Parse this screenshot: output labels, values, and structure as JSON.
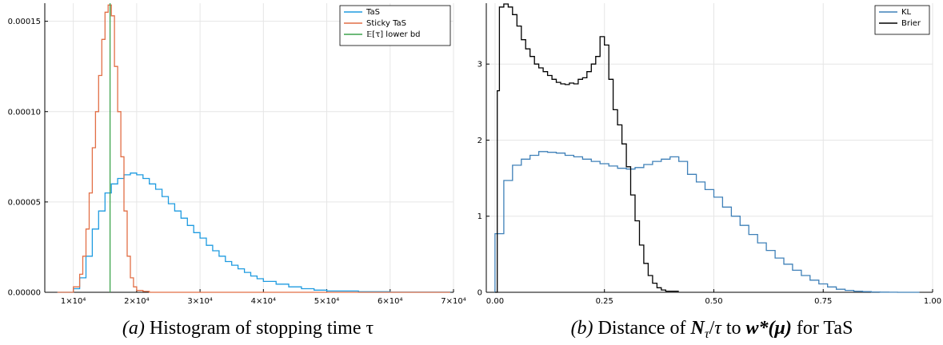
{
  "chart_data": [
    {
      "type": "line",
      "step": true,
      "caption": {
        "label": "(a)",
        "text": "Histogram of stopping time τ"
      },
      "xlim": [
        5500,
        70000
      ],
      "ylim": [
        0,
        0.00016
      ],
      "xticks": [
        {
          "v": 10000,
          "label": "1×10⁴"
        },
        {
          "v": 20000,
          "label": "2×10⁴"
        },
        {
          "v": 30000,
          "label": "3×10⁴"
        },
        {
          "v": 40000,
          "label": "4×10⁴"
        },
        {
          "v": 50000,
          "label": "5×10⁴"
        },
        {
          "v": 60000,
          "label": "6×10⁴"
        },
        {
          "v": 70000,
          "label": "7×10⁴"
        }
      ],
      "yticks": [
        {
          "v": 0,
          "label": "0.00000"
        },
        {
          "v": 5e-05,
          "label": "0.00005"
        },
        {
          "v": 0.0001,
          "label": "0.00010"
        },
        {
          "v": 0.00015,
          "label": "0.00015"
        }
      ],
      "grid": true,
      "legend": "top-right",
      "vline": {
        "name": "𝔼[τ] lower bd",
        "x": 15800,
        "color": "#3da44d"
      },
      "series": [
        {
          "name": "TaS",
          "color": "#1e9be0",
          "x": [
            7500,
            10000,
            11000,
            12000,
            13000,
            14000,
            15000,
            16000,
            17000,
            18000,
            19000,
            20000,
            21000,
            22000,
            23000,
            24000,
            25000,
            26000,
            27000,
            28000,
            29000,
            30000,
            31000,
            32000,
            33000,
            34000,
            35000,
            36000,
            37000,
            38000,
            39000,
            40000,
            42000,
            44000,
            46000,
            48000,
            50000,
            55000,
            60000,
            69500
          ],
          "y": [
            0,
            2e-06,
            8e-06,
            2e-05,
            3.5e-05,
            4.5e-05,
            5.5e-05,
            6e-05,
            6.3e-05,
            6.5e-05,
            6.6e-05,
            6.5e-05,
            6.3e-05,
            6e-05,
            5.7e-05,
            5.3e-05,
            4.9e-05,
            4.5e-05,
            4.1e-05,
            3.7e-05,
            3.3e-05,
            3e-05,
            2.6e-05,
            2.3e-05,
            2e-05,
            1.7e-05,
            1.5e-05,
            1.3e-05,
            1.1e-05,
            9e-06,
            7.5e-06,
            6e-06,
            4.5e-06,
            3e-06,
            2e-06,
            1.2e-06,
            7e-07,
            3e-07,
            1e-07,
            0
          ]
        },
        {
          "name": "Sticky TaS",
          "color": "#e26f46",
          "x": [
            7500,
            10000,
            11000,
            11500,
            12000,
            12500,
            13000,
            13500,
            14000,
            14500,
            15000,
            15500,
            16000,
            16500,
            17000,
            17500,
            18000,
            18500,
            19000,
            19500,
            20000,
            21000,
            22000,
            69500
          ],
          "y": [
            0,
            3e-06,
            1e-05,
            2e-05,
            3.5e-05,
            5.5e-05,
            8e-05,
            0.0001,
            0.00012,
            0.00014,
            0.000155,
            0.000159,
            0.000153,
            0.000125,
            0.0001,
            7.5e-05,
            4.5e-05,
            2e-05,
            8e-06,
            3e-06,
            1e-06,
            5e-07,
            0,
            0
          ]
        }
      ]
    },
    {
      "type": "line",
      "step": true,
      "caption": {
        "label": "(b)",
        "text_before": "Distance of",
        "frac_num": "N",
        "frac_sub": "τ",
        "frac_den": "τ",
        "to": "to",
        "target": "w*(μ)",
        "text_after": "for TaS"
      },
      "xlim": [
        -0.02,
        1.0
      ],
      "ylim": [
        0,
        3.8
      ],
      "xticks": [
        {
          "v": 0.0,
          "label": "0.00"
        },
        {
          "v": 0.25,
          "label": "0.25"
        },
        {
          "v": 0.5,
          "label": "0.50"
        },
        {
          "v": 0.75,
          "label": "0.75"
        },
        {
          "v": 1.0,
          "label": "1.00"
        }
      ],
      "yticks": [
        {
          "v": 0,
          "label": "0"
        },
        {
          "v": 1,
          "label": "1"
        },
        {
          "v": 2,
          "label": "2"
        },
        {
          "v": 3,
          "label": "3"
        }
      ],
      "grid": true,
      "legend": "top-right",
      "series": [
        {
          "name": "KL",
          "color": "#3f80b8",
          "x": [
            0.0,
            0.01,
            0.02,
            0.04,
            0.06,
            0.08,
            0.1,
            0.12,
            0.14,
            0.16,
            0.18,
            0.2,
            0.22,
            0.24,
            0.26,
            0.28,
            0.3,
            0.32,
            0.34,
            0.36,
            0.38,
            0.4,
            0.42,
            0.44,
            0.46,
            0.48,
            0.5,
            0.52,
            0.54,
            0.56,
            0.58,
            0.6,
            0.62,
            0.64,
            0.66,
            0.68,
            0.7,
            0.72,
            0.74,
            0.76,
            0.78,
            0.8,
            0.82,
            0.84,
            0.86,
            0.88,
            0.9,
            0.92,
            0.97
          ],
          "y": [
            0.77,
            0.77,
            1.47,
            1.67,
            1.75,
            1.8,
            1.85,
            1.84,
            1.83,
            1.8,
            1.78,
            1.75,
            1.72,
            1.69,
            1.66,
            1.63,
            1.62,
            1.64,
            1.68,
            1.72,
            1.75,
            1.78,
            1.72,
            1.55,
            1.45,
            1.35,
            1.25,
            1.12,
            1.0,
            0.88,
            0.76,
            0.65,
            0.55,
            0.45,
            0.37,
            0.29,
            0.22,
            0.16,
            0.11,
            0.07,
            0.04,
            0.025,
            0.015,
            0.008,
            0.004,
            0.002,
            0.001,
            0,
            0
          ]
        },
        {
          "name": "Brier",
          "color": "#000000",
          "x": [
            0.0,
            0.005,
            0.01,
            0.02,
            0.03,
            0.04,
            0.05,
            0.06,
            0.07,
            0.08,
            0.09,
            0.1,
            0.11,
            0.12,
            0.13,
            0.14,
            0.15,
            0.16,
            0.17,
            0.18,
            0.19,
            0.2,
            0.21,
            0.22,
            0.23,
            0.24,
            0.25,
            0.26,
            0.27,
            0.28,
            0.29,
            0.3,
            0.31,
            0.32,
            0.33,
            0.34,
            0.35,
            0.36,
            0.37,
            0.38,
            0.39,
            0.4,
            0.42
          ],
          "y": [
            0,
            2.65,
            3.75,
            3.79,
            3.75,
            3.65,
            3.5,
            3.32,
            3.2,
            3.1,
            3.0,
            2.95,
            2.9,
            2.85,
            2.8,
            2.76,
            2.74,
            2.73,
            2.75,
            2.74,
            2.8,
            2.82,
            2.9,
            3.0,
            3.1,
            3.36,
            3.25,
            2.8,
            2.4,
            2.2,
            1.95,
            1.65,
            1.28,
            0.94,
            0.62,
            0.38,
            0.22,
            0.12,
            0.06,
            0.03,
            0.015,
            0.015,
            0.015
          ]
        }
      ]
    }
  ]
}
